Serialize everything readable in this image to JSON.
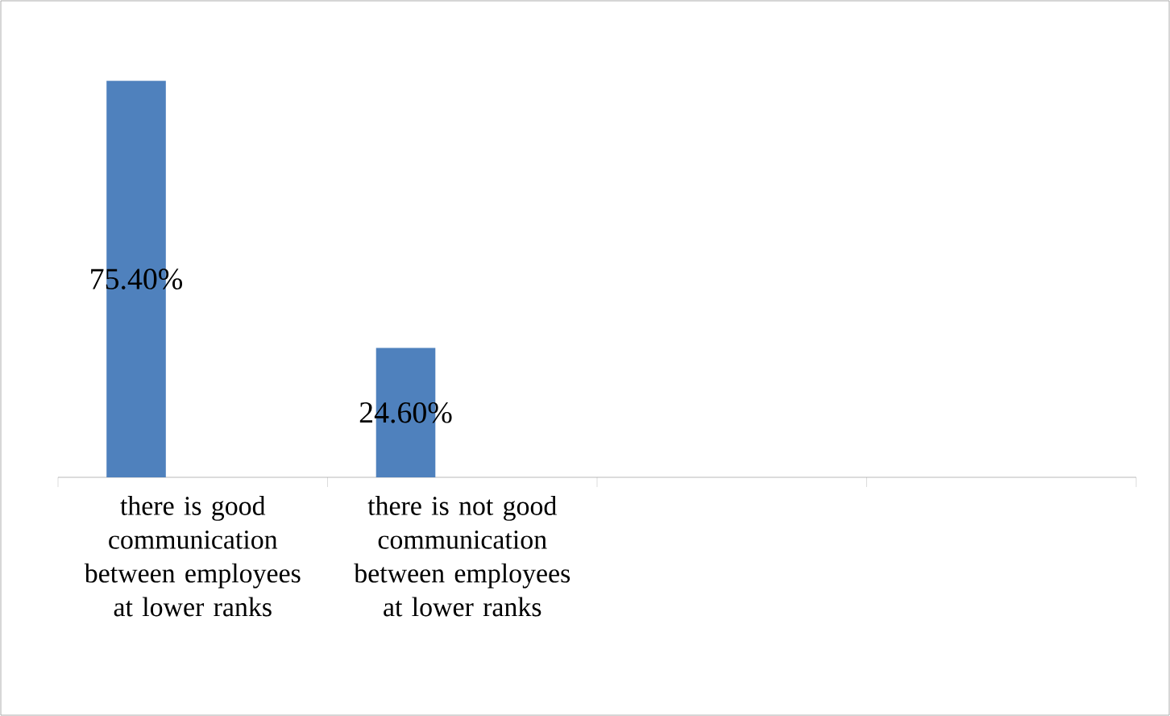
{
  "chart_data": {
    "type": "bar",
    "categories": [
      "there is good communication between employees at lower ranks",
      "there is not good communication between employees at lower ranks",
      null,
      null
    ],
    "values": [
      75.4,
      24.6,
      null,
      null
    ],
    "value_labels": [
      "75.40%",
      "24.60%",
      null,
      null
    ],
    "color": "#4f81bd"
  }
}
